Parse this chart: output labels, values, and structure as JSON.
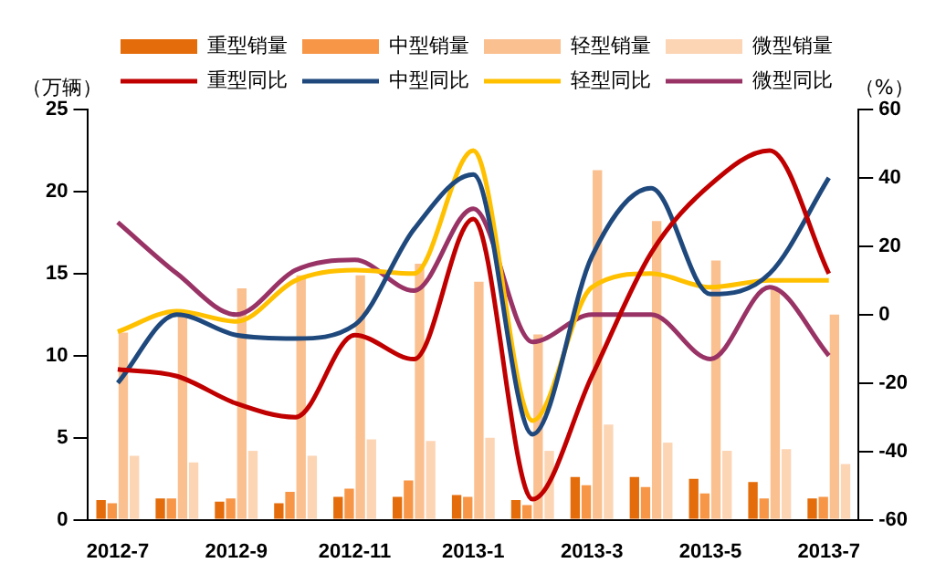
{
  "chart_data": {
    "type": "bar",
    "categories": [
      "2012-7",
      null,
      "2012-9",
      null,
      "2012-11",
      null,
      "2013-1",
      null,
      "2013-3",
      null,
      "2013-5",
      null,
      "2013-7"
    ],
    "ylabel": "（万辆）",
    "y2label": "（%）",
    "ylim": [
      0,
      25
    ],
    "yticks": [
      0,
      5,
      10,
      15,
      20,
      25
    ],
    "y2lim": [
      -60,
      60
    ],
    "y2ticks": [
      -60,
      -40,
      -20,
      0,
      20,
      40,
      60
    ],
    "grid": false,
    "legend": "top",
    "marker": "none",
    "series": [
      {
        "name": "重型销量",
        "color": "#e46c0a",
        "values": [
          1.2,
          1.3,
          1.1,
          1.0,
          1.4,
          1.4,
          1.5,
          1.2,
          2.6,
          2.6,
          2.5,
          2.3,
          1.3
        ]
      },
      {
        "name": "中型销量",
        "color": "#f79646",
        "values": [
          1.0,
          1.3,
          1.3,
          1.7,
          1.9,
          2.4,
          1.4,
          0.9,
          2.1,
          2.0,
          1.6,
          1.3,
          1.4
        ]
      },
      {
        "name": "轻型销量",
        "color": "#fac090",
        "values": [
          11.4,
          12.4,
          14.1,
          14.9,
          14.9,
          15.6,
          14.5,
          11.3,
          21.3,
          18.2,
          15.8,
          14.0,
          12.5
        ]
      },
      {
        "name": "微型销量",
        "color": "#fcd5b5",
        "values": [
          3.9,
          3.5,
          4.2,
          3.9,
          4.9,
          4.8,
          5.0,
          4.2,
          5.8,
          4.7,
          4.2,
          4.3,
          3.4
        ]
      },
      {
        "name": "重型同比",
        "type": "line",
        "axis": "y2",
        "color": "#c00000",
        "values": [
          -16,
          -18,
          -26,
          -30,
          -6,
          -13,
          28,
          -54,
          -18,
          18,
          38,
          48,
          12
        ]
      },
      {
        "name": "中型同比",
        "type": "line",
        "axis": "y2",
        "color": "#1f497d",
        "values": [
          -20,
          0,
          -6,
          -7,
          -3,
          25,
          41,
          -35,
          17,
          37,
          6,
          12,
          40
        ]
      },
      {
        "name": "轻型同比",
        "type": "line",
        "axis": "y2",
        "color": "#ffc000",
        "values": [
          -5,
          1,
          -2,
          10,
          13,
          12,
          48,
          -31,
          8,
          12,
          8,
          10,
          10
        ]
      },
      {
        "name": "微型同比",
        "type": "line",
        "axis": "y2",
        "color": "#993366",
        "values": [
          27,
          12,
          0,
          13,
          16,
          7,
          31,
          -8,
          0,
          0,
          -13,
          8,
          -12
        ]
      }
    ]
  }
}
